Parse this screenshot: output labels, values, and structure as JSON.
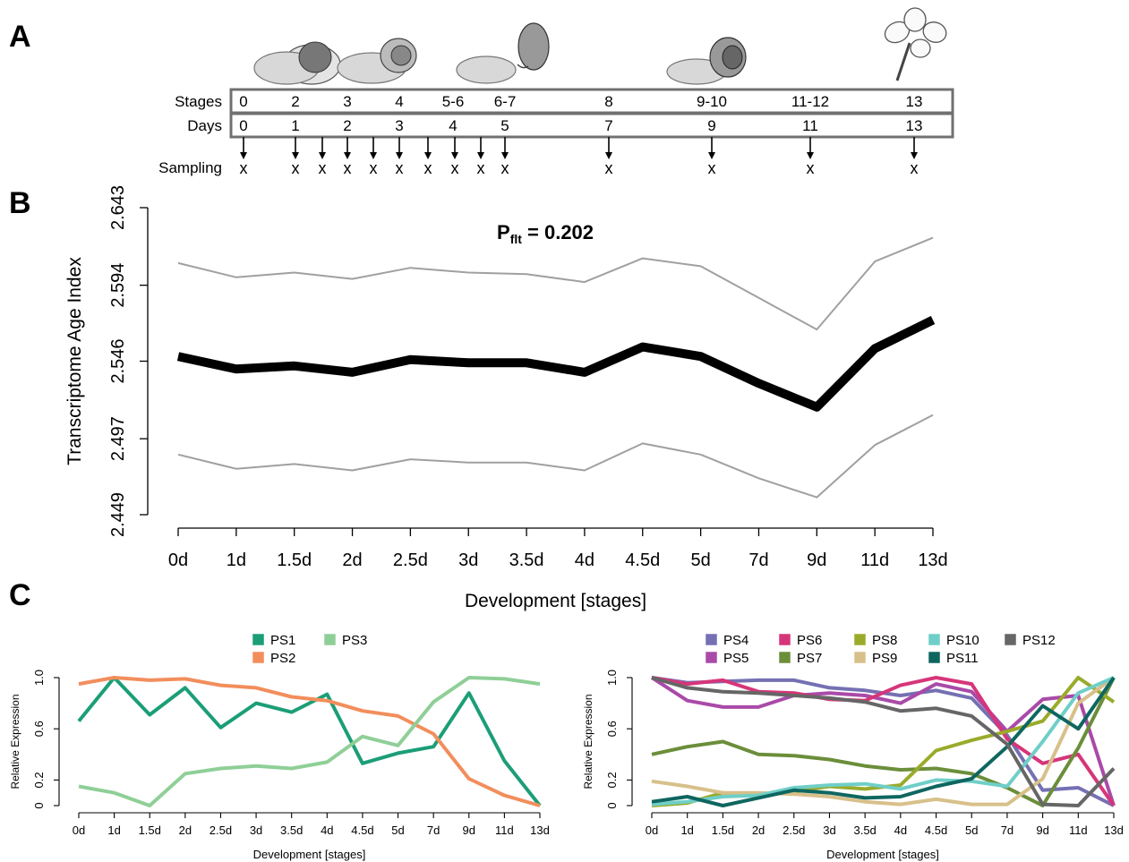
{
  "panel_labels": {
    "a": "A",
    "b": "B",
    "c": "C"
  },
  "timeline": {
    "row_labels": {
      "stages": "Stages",
      "days": "Days",
      "sampling": "Sampling"
    },
    "stages": [
      "0",
      "2",
      "3",
      "4",
      "5-6",
      "6-7",
      "8",
      "9-10",
      "11-12",
      "13"
    ],
    "days": [
      "0",
      "1",
      "2",
      "3",
      "4",
      "5",
      "7",
      "9",
      "11",
      "13"
    ],
    "sampling_marker": "x",
    "sample_count": 14
  },
  "chart_data": [
    {
      "id": "B",
      "type": "line",
      "annotation": {
        "main": "P",
        "sub": "flt",
        "rest": " = 0.202"
      },
      "xlabel": "Development [stages]",
      "ylabel": "Transcriptome Age Index",
      "categories": [
        "0d",
        "1d",
        "1.5d",
        "2d",
        "2.5d",
        "3d",
        "3.5d",
        "4d",
        "4.5d",
        "5d",
        "7d",
        "9d",
        "11d",
        "13d"
      ],
      "yticks": [
        "2.449",
        "2.497",
        "2.546",
        "2.594",
        "2.643"
      ],
      "ylim": [
        2.449,
        2.643
      ],
      "series": [
        {
          "values": [
            2.549,
            2.541,
            2.543,
            2.539,
            2.547,
            2.545,
            2.545,
            2.539,
            2.555,
            2.549,
            2.532,
            2.517,
            2.554,
            2.572
          ],
          "color": "#000000",
          "width": 10
        },
        {
          "values": [
            2.608,
            2.599,
            2.602,
            2.598,
            2.605,
            2.602,
            2.601,
            2.596,
            2.611,
            2.606,
            2.586,
            2.566,
            2.609,
            2.624
          ],
          "color": "#a0a0a0",
          "width": 2
        },
        {
          "values": [
            2.487,
            2.478,
            2.481,
            2.477,
            2.484,
            2.482,
            2.482,
            2.477,
            2.494,
            2.487,
            2.472,
            2.46,
            2.493,
            2.512
          ],
          "color": "#a0a0a0",
          "width": 2
        }
      ]
    },
    {
      "id": "C-left",
      "type": "line",
      "xlabel": "Development [stages]",
      "ylabel": "Relative Expression",
      "categories": [
        "0d",
        "1d",
        "1.5d",
        "2d",
        "2.5d",
        "3d",
        "3.5d",
        "4d",
        "4.5d",
        "5d",
        "7d",
        "9d",
        "11d",
        "13d"
      ],
      "yticks": [
        "0",
        "0.2",
        "0.6",
        "1.0"
      ],
      "ylim": [
        0,
        1
      ],
      "series": [
        {
          "name": "PS1",
          "color": "#1b9e77",
          "values": [
            0.66,
            1.0,
            0.71,
            0.92,
            0.61,
            0.8,
            0.73,
            0.87,
            0.33,
            0.41,
            0.46,
            0.88,
            0.35,
            0.0
          ]
        },
        {
          "name": "PS2",
          "color": "#f28e5c",
          "values": [
            0.95,
            1.0,
            0.98,
            0.99,
            0.94,
            0.92,
            0.85,
            0.82,
            0.74,
            0.7,
            0.56,
            0.21,
            0.08,
            0.0
          ]
        },
        {
          "name": "PS3",
          "color": "#8fcf97",
          "values": [
            0.15,
            0.1,
            0.0,
            0.25,
            0.29,
            0.31,
            0.29,
            0.34,
            0.54,
            0.47,
            0.81,
            1.0,
            0.99,
            0.95
          ]
        }
      ]
    },
    {
      "id": "C-right",
      "type": "line",
      "xlabel": "Development [stages]",
      "ylabel": "Relative Expression",
      "categories": [
        "0d",
        "1d",
        "1.5d",
        "2d",
        "2.5d",
        "3d",
        "3.5d",
        "4d",
        "4.5d",
        "5d",
        "7d",
        "9d",
        "11d",
        "13d"
      ],
      "yticks": [
        "0",
        "0.2",
        "0.6",
        "1.0"
      ],
      "ylim": [
        0,
        1
      ],
      "series": [
        {
          "name": "PS4",
          "color": "#7570b3",
          "values": [
            1.0,
            0.96,
            0.97,
            0.98,
            0.98,
            0.92,
            0.9,
            0.86,
            0.9,
            0.84,
            0.55,
            0.12,
            0.14,
            0.0
          ]
        },
        {
          "name": "PS5",
          "color": "#a94aa8",
          "values": [
            1.0,
            0.82,
            0.77,
            0.77,
            0.86,
            0.88,
            0.86,
            0.8,
            0.95,
            0.89,
            0.58,
            0.83,
            0.86,
            0.0
          ]
        },
        {
          "name": "PS6",
          "color": "#d63579",
          "values": [
            1.0,
            0.95,
            0.98,
            0.89,
            0.88,
            0.83,
            0.82,
            0.94,
            1.0,
            0.95,
            0.52,
            0.33,
            0.4,
            0.0
          ]
        },
        {
          "name": "PS7",
          "color": "#6b8e3a",
          "values": [
            0.4,
            0.46,
            0.5,
            0.4,
            0.39,
            0.36,
            0.31,
            0.28,
            0.29,
            0.25,
            0.14,
            0.0,
            0.45,
            1.0
          ]
        },
        {
          "name": "PS8",
          "color": "#9aab2b",
          "values": [
            0.0,
            0.02,
            0.1,
            0.08,
            0.11,
            0.15,
            0.13,
            0.16,
            0.43,
            0.51,
            0.58,
            0.66,
            1.0,
            0.81
          ]
        },
        {
          "name": "PS9",
          "color": "#d8c08a",
          "values": [
            0.19,
            0.15,
            0.1,
            0.1,
            0.09,
            0.07,
            0.03,
            0.01,
            0.05,
            0.01,
            0.01,
            0.21,
            0.8,
            1.0
          ]
        },
        {
          "name": "PS10",
          "color": "#6fcfc8",
          "values": [
            0.01,
            0.03,
            0.07,
            0.08,
            0.14,
            0.16,
            0.17,
            0.13,
            0.2,
            0.19,
            0.15,
            0.5,
            0.88,
            1.0
          ]
        },
        {
          "name": "PS11",
          "color": "#0f6660",
          "values": [
            0.03,
            0.07,
            0.0,
            0.06,
            0.12,
            0.1,
            0.06,
            0.07,
            0.15,
            0.21,
            0.46,
            0.78,
            0.6,
            1.0
          ]
        },
        {
          "name": "PS12",
          "color": "#666666",
          "values": [
            1.0,
            0.92,
            0.89,
            0.88,
            0.86,
            0.84,
            0.81,
            0.74,
            0.76,
            0.7,
            0.48,
            0.01,
            0.0,
            0.29
          ]
        }
      ]
    }
  ]
}
